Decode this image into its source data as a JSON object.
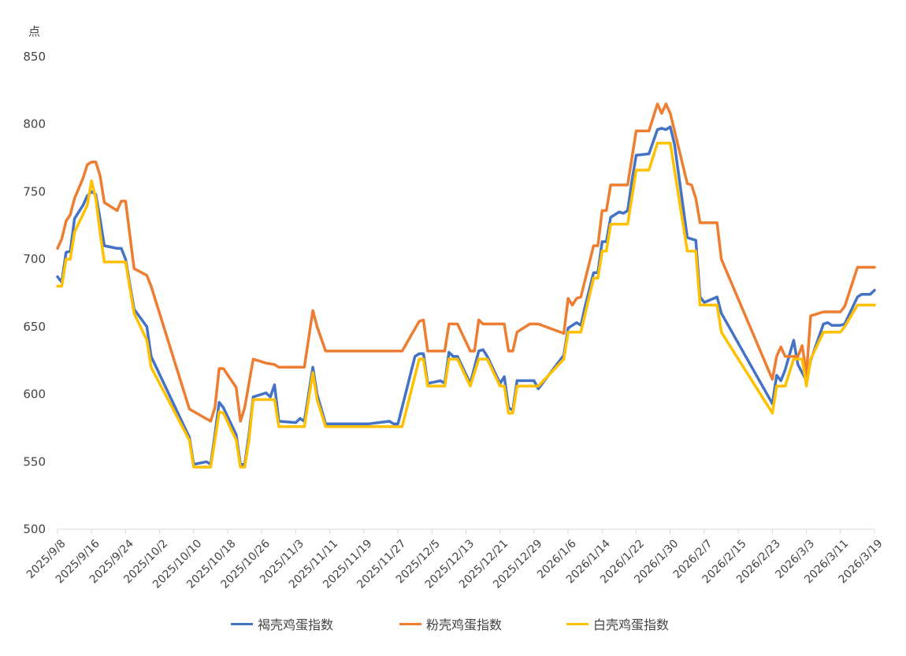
{
  "chart_data": {
    "type": "line",
    "y_unit_label": "点",
    "ylim": [
      500,
      850
    ],
    "y_ticks": [
      500,
      550,
      600,
      650,
      700,
      750,
      800,
      850
    ],
    "x_tick_labels": [
      "2025/9/8",
      "2025/9/16",
      "2025/9/24",
      "2025/10/2",
      "2025/10/10",
      "2025/10/18",
      "2025/10/26",
      "2025/11/3",
      "2025/11/11",
      "2025/11/19",
      "2025/11/27",
      "2025/12/5",
      "2025/12/13",
      "2025/12/21",
      "2025/12/29",
      "2026/1/6",
      "2026/1/14",
      "2026/1/22",
      "2026/1/30",
      "2026/2/7",
      "2026/2/15",
      "2026/2/23",
      "2026/3/3",
      "2026/3/11",
      "2026/3/19"
    ],
    "x_range": [
      "2025/9/8",
      "2026/3/19"
    ],
    "grid": false,
    "legend_position": "bottom",
    "series": [
      {
        "name": "褐壳鸡蛋指数",
        "color": "#4472C4",
        "points": [
          [
            "2025/9/8",
            687
          ],
          [
            "2025/9/9",
            683
          ],
          [
            "2025/9/10",
            705
          ],
          [
            "2025/9/11",
            706
          ],
          [
            "2025/9/12",
            730
          ],
          [
            "2025/9/13",
            735
          ],
          [
            "2025/9/14",
            740
          ],
          [
            "2025/9/15",
            747
          ],
          [
            "2025/9/16",
            750
          ],
          [
            "2025/9/17",
            748
          ],
          [
            "2025/9/18",
            730
          ],
          [
            "2025/9/19",
            710
          ],
          [
            "2025/9/22",
            708
          ],
          [
            "2025/9/23",
            708
          ],
          [
            "2025/9/24",
            700
          ],
          [
            "2025/9/26",
            663
          ],
          [
            "2025/9/29",
            650
          ],
          [
            "2025/9/30",
            628
          ],
          [
            "2025/10/9",
            568
          ],
          [
            "2025/10/10",
            548
          ],
          [
            "2025/10/13",
            550
          ],
          [
            "2025/10/14",
            548
          ],
          [
            "2025/10/15",
            570
          ],
          [
            "2025/10/16",
            594
          ],
          [
            "2025/10/17",
            590
          ],
          [
            "2025/10/20",
            570
          ],
          [
            "2025/10/21",
            548
          ],
          [
            "2025/10/22",
            548
          ],
          [
            "2025/10/23",
            570
          ],
          [
            "2025/10/24",
            598
          ],
          [
            "2025/10/27",
            601
          ],
          [
            "2025/10/28",
            598
          ],
          [
            "2025/10/29",
            607
          ],
          [
            "2025/10/30",
            580
          ],
          [
            "2025/11/3",
            579
          ],
          [
            "2025/11/4",
            582
          ],
          [
            "2025/11/5",
            580
          ],
          [
            "2025/11/7",
            620
          ],
          [
            "2025/11/8",
            600
          ],
          [
            "2025/11/10",
            578
          ],
          [
            "2025/11/20",
            578
          ],
          [
            "2025/11/25",
            580
          ],
          [
            "2025/11/26",
            578
          ],
          [
            "2025/11/27",
            578
          ],
          [
            "2025/12/1",
            628
          ],
          [
            "2025/12/2",
            630
          ],
          [
            "2025/12/3",
            630
          ],
          [
            "2025/12/4",
            608
          ],
          [
            "2025/12/7",
            610
          ],
          [
            "2025/12/8",
            608
          ],
          [
            "2025/12/9",
            631
          ],
          [
            "2025/12/10",
            628
          ],
          [
            "2025/12/11",
            628
          ],
          [
            "2025/12/14",
            608
          ],
          [
            "2025/12/16",
            632
          ],
          [
            "2025/12/17",
            633
          ],
          [
            "2025/12/18",
            628
          ],
          [
            "2025/12/21",
            608
          ],
          [
            "2025/12/22",
            613
          ],
          [
            "2025/12/23",
            590
          ],
          [
            "2025/12/24",
            588
          ],
          [
            "2025/12/25",
            610
          ],
          [
            "2025/12/29",
            610
          ],
          [
            "2025/12/30",
            604
          ],
          [
            "2026/1/5",
            629
          ],
          [
            "2026/1/6",
            649
          ],
          [
            "2026/1/8",
            653
          ],
          [
            "2026/1/9",
            651
          ],
          [
            "2026/1/10",
            665
          ],
          [
            "2026/1/12",
            690
          ],
          [
            "2026/1/13",
            690
          ],
          [
            "2026/1/14",
            713
          ],
          [
            "2026/1/15",
            713
          ],
          [
            "2026/1/16",
            731
          ],
          [
            "2026/1/18",
            735
          ],
          [
            "2026/1/19",
            734
          ],
          [
            "2026/1/20",
            736
          ],
          [
            "2026/1/21",
            758
          ],
          [
            "2026/1/22",
            777
          ],
          [
            "2026/1/25",
            778
          ],
          [
            "2026/1/27",
            796
          ],
          [
            "2026/1/28",
            797
          ],
          [
            "2026/1/29",
            796
          ],
          [
            "2026/1/30",
            798
          ],
          [
            "2026/1/31",
            785
          ],
          [
            "2026/2/3",
            716
          ],
          [
            "2026/2/4",
            715
          ],
          [
            "2026/2/5",
            714
          ],
          [
            "2026/2/6",
            672
          ],
          [
            "2026/2/7",
            668
          ],
          [
            "2026/2/10",
            672
          ],
          [
            "2026/2/11",
            660
          ],
          [
            "2026/2/23",
            593
          ],
          [
            "2026/2/24",
            614
          ],
          [
            "2026/2/25",
            610
          ],
          [
            "2026/2/26",
            618
          ],
          [
            "2026/2/28",
            640
          ],
          [
            "2026/3/1",
            622
          ],
          [
            "2026/3/3",
            610
          ],
          [
            "2026/3/4",
            625
          ],
          [
            "2026/3/7",
            652
          ],
          [
            "2026/3/8",
            653
          ],
          [
            "2026/3/9",
            651
          ],
          [
            "2026/3/11",
            651
          ],
          [
            "2026/3/12",
            652
          ],
          [
            "2026/3/15",
            672
          ],
          [
            "2026/3/16",
            674
          ],
          [
            "2026/3/18",
            674
          ],
          [
            "2026/3/19",
            677
          ]
        ]
      },
      {
        "name": "粉壳鸡蛋指数",
        "color": "#ED7D31",
        "points": [
          [
            "2025/9/8",
            708
          ],
          [
            "2025/9/9",
            715
          ],
          [
            "2025/9/10",
            728
          ],
          [
            "2025/9/11",
            733
          ],
          [
            "2025/9/12",
            745
          ],
          [
            "2025/9/14",
            760
          ],
          [
            "2025/9/15",
            770
          ],
          [
            "2025/9/16",
            772
          ],
          [
            "2025/9/17",
            772
          ],
          [
            "2025/9/18",
            762
          ],
          [
            "2025/9/19",
            742
          ],
          [
            "2025/9/22",
            736
          ],
          [
            "2025/9/23",
            743
          ],
          [
            "2025/9/24",
            743
          ],
          [
            "2025/9/26",
            693
          ],
          [
            "2025/9/29",
            688
          ],
          [
            "2025/9/30",
            680
          ],
          [
            "2025/10/9",
            589
          ],
          [
            "2025/10/14",
            580
          ],
          [
            "2025/10/15",
            590
          ],
          [
            "2025/10/16",
            619
          ],
          [
            "2025/10/17",
            619
          ],
          [
            "2025/10/20",
            605
          ],
          [
            "2025/10/21",
            580
          ],
          [
            "2025/10/22",
            590
          ],
          [
            "2025/10/24",
            626
          ],
          [
            "2025/10/27",
            623
          ],
          [
            "2025/10/29",
            622
          ],
          [
            "2025/10/30",
            620
          ],
          [
            "2025/11/5",
            620
          ],
          [
            "2025/11/7",
            662
          ],
          [
            "2025/11/8",
            650
          ],
          [
            "2025/11/10",
            632
          ],
          [
            "2025/11/27",
            632
          ],
          [
            "2025/11/28",
            632
          ],
          [
            "2025/12/2",
            654
          ],
          [
            "2025/12/3",
            655
          ],
          [
            "2025/12/4",
            632
          ],
          [
            "2025/12/8",
            632
          ],
          [
            "2025/12/9",
            652
          ],
          [
            "2025/12/11",
            652
          ],
          [
            "2025/12/14",
            632
          ],
          [
            "2025/12/15",
            632
          ],
          [
            "2025/12/16",
            655
          ],
          [
            "2025/12/17",
            652
          ],
          [
            "2025/12/22",
            652
          ],
          [
            "2025/12/23",
            632
          ],
          [
            "2025/12/24",
            632
          ],
          [
            "2025/12/25",
            646
          ],
          [
            "2025/12/28",
            652
          ],
          [
            "2025/12/30",
            652
          ],
          [
            "2026/1/5",
            645
          ],
          [
            "2026/1/6",
            671
          ],
          [
            "2026/1/7",
            666
          ],
          [
            "2026/1/8",
            671
          ],
          [
            "2026/1/9",
            672
          ],
          [
            "2026/1/12",
            710
          ],
          [
            "2026/1/13",
            710
          ],
          [
            "2026/1/14",
            736
          ],
          [
            "2026/1/15",
            736
          ],
          [
            "2026/1/16",
            755
          ],
          [
            "2026/1/20",
            755
          ],
          [
            "2026/1/22",
            795
          ],
          [
            "2026/1/25",
            795
          ],
          [
            "2026/1/27",
            815
          ],
          [
            "2026/1/28",
            808
          ],
          [
            "2026/1/29",
            815
          ],
          [
            "2026/1/30",
            808
          ],
          [
            "2026/2/3",
            756
          ],
          [
            "2026/2/4",
            755
          ],
          [
            "2026/2/5",
            745
          ],
          [
            "2026/2/6",
            727
          ],
          [
            "2026/2/10",
            727
          ],
          [
            "2026/2/11",
            700
          ],
          [
            "2026/2/23",
            611
          ],
          [
            "2026/2/24",
            628
          ],
          [
            "2026/2/25",
            635
          ],
          [
            "2026/2/26",
            628
          ],
          [
            "2026/3/1",
            628
          ],
          [
            "2026/3/2",
            636
          ],
          [
            "2026/3/3",
            615
          ],
          [
            "2026/3/4",
            658
          ],
          [
            "2026/3/7",
            661
          ],
          [
            "2026/3/11",
            661
          ],
          [
            "2026/3/12",
            665
          ],
          [
            "2026/3/15",
            694
          ],
          [
            "2026/3/19",
            694
          ]
        ]
      },
      {
        "name": "白壳鸡蛋指数",
        "color": "#FFC000",
        "points": [
          [
            "2025/9/8",
            680
          ],
          [
            "2025/9/9",
            680
          ],
          [
            "2025/9/10",
            700
          ],
          [
            "2025/9/11",
            700
          ],
          [
            "2025/9/12",
            720
          ],
          [
            "2025/9/15",
            740
          ],
          [
            "2025/9/16",
            758
          ],
          [
            "2025/9/17",
            745
          ],
          [
            "2025/9/18",
            720
          ],
          [
            "2025/9/19",
            698
          ],
          [
            "2025/9/24",
            698
          ],
          [
            "2025/9/26",
            660
          ],
          [
            "2025/9/29",
            640
          ],
          [
            "2025/9/30",
            620
          ],
          [
            "2025/10/9",
            566
          ],
          [
            "2025/10/10",
            546
          ],
          [
            "2025/10/14",
            546
          ],
          [
            "2025/10/15",
            566
          ],
          [
            "2025/10/16",
            587
          ],
          [
            "2025/10/17",
            586
          ],
          [
            "2025/10/20",
            566
          ],
          [
            "2025/10/21",
            546
          ],
          [
            "2025/10/22",
            546
          ],
          [
            "2025/10/23",
            566
          ],
          [
            "2025/10/24",
            596
          ],
          [
            "2025/10/29",
            596
          ],
          [
            "2025/10/30",
            576
          ],
          [
            "2025/11/5",
            576
          ],
          [
            "2025/11/7",
            616
          ],
          [
            "2025/11/8",
            596
          ],
          [
            "2025/11/10",
            576
          ],
          [
            "2025/11/27",
            576
          ],
          [
            "2025/11/28",
            576
          ],
          [
            "2025/12/2",
            626
          ],
          [
            "2025/12/3",
            626
          ],
          [
            "2025/12/4",
            606
          ],
          [
            "2025/12/8",
            606
          ],
          [
            "2025/12/9",
            626
          ],
          [
            "2025/12/11",
            626
          ],
          [
            "2025/12/14",
            606
          ],
          [
            "2025/12/16",
            626
          ],
          [
            "2025/12/18",
            626
          ],
          [
            "2025/12/21",
            606
          ],
          [
            "2025/12/22",
            606
          ],
          [
            "2025/12/23",
            586
          ],
          [
            "2025/12/24",
            586
          ],
          [
            "2025/12/25",
            606
          ],
          [
            "2025/12/30",
            606
          ],
          [
            "2026/1/5",
            626
          ],
          [
            "2026/1/6",
            646
          ],
          [
            "2026/1/9",
            646
          ],
          [
            "2026/1/12",
            686
          ],
          [
            "2026/1/13",
            686
          ],
          [
            "2026/1/14",
            706
          ],
          [
            "2026/1/15",
            706
          ],
          [
            "2026/1/16",
            726
          ],
          [
            "2026/1/20",
            726
          ],
          [
            "2026/1/22",
            766
          ],
          [
            "2026/1/25",
            766
          ],
          [
            "2026/1/27",
            786
          ],
          [
            "2026/1/30",
            786
          ],
          [
            "2026/2/3",
            706
          ],
          [
            "2026/2/5",
            706
          ],
          [
            "2026/2/6",
            666
          ],
          [
            "2026/2/10",
            666
          ],
          [
            "2026/2/11",
            646
          ],
          [
            "2026/2/23",
            586
          ],
          [
            "2026/2/24",
            606
          ],
          [
            "2026/2/26",
            606
          ],
          [
            "2026/2/28",
            626
          ],
          [
            "2026/3/2",
            626
          ],
          [
            "2026/3/3",
            606
          ],
          [
            "2026/3/4",
            626
          ],
          [
            "2026/3/7",
            646
          ],
          [
            "2026/3/11",
            646
          ],
          [
            "2026/3/12",
            650
          ],
          [
            "2026/3/15",
            666
          ],
          [
            "2026/3/19",
            666
          ]
        ]
      }
    ]
  }
}
